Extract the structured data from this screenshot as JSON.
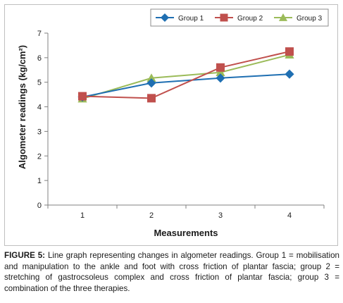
{
  "chart_data": {
    "type": "line",
    "xlabel": "Measurements",
    "ylabel": "Algometer readings (kg/cm²)",
    "categories": [
      "1",
      "2",
      "3",
      "4"
    ],
    "ylim": [
      0,
      7
    ],
    "yticks": [
      "0",
      "1",
      "2",
      "3",
      "4",
      "5",
      "6",
      "7"
    ],
    "grid": false,
    "legend_position": "top-right",
    "series": [
      {
        "name": "Group 1",
        "values": [
          4.4,
          4.97,
          5.17,
          5.33
        ],
        "color": "#1f6fb2",
        "marker": "diamond"
      },
      {
        "name": "Group 2",
        "values": [
          4.43,
          4.35,
          5.6,
          6.25
        ],
        "color": "#c0504d",
        "marker": "square"
      },
      {
        "name": "Group 3",
        "values": [
          4.33,
          5.17,
          5.4,
          6.12
        ],
        "color": "#9bbb59",
        "marker": "triangle"
      }
    ]
  },
  "caption": {
    "label": "FIGURE 5:",
    "text": " Line graph representing changes in algometer readings. Group 1 = mobilisation and manipulation to the ankle and foot with cross friction of plantar fascia; group 2 = stretching of gastrocsoleus complex and cross friction of plantar fascia; group 3 = combination of the three therapies."
  }
}
